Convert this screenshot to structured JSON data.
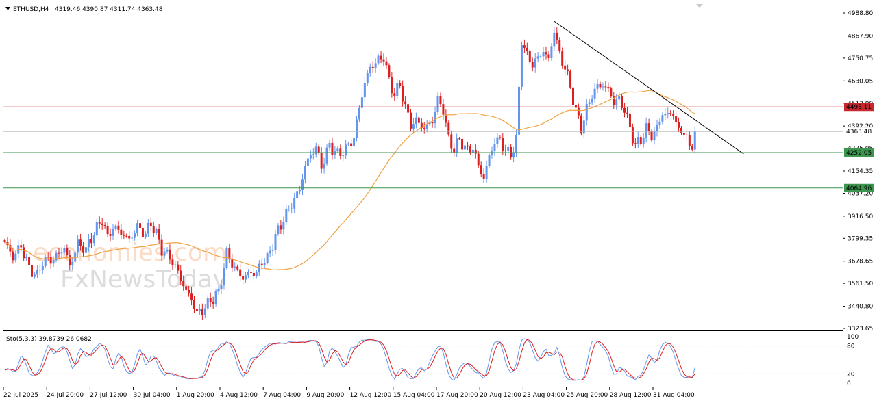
{
  "header": {
    "symbol": "ETHUSD,H4",
    "ohlc": "4319.46 4390.87 4311.74 4363.48"
  },
  "indicator": {
    "label": "Sto(5,3,3) 39.8739 26.0682",
    "levels": [
      "100",
      "80",
      "20",
      "0"
    ]
  },
  "watermark": {
    "line1": "economies.com",
    "line2": "FxNewsToday"
  },
  "colors": {
    "bull": "#6495ed",
    "bear": "#dc1e1e",
    "ma": "#f0a040",
    "resistance": "#c8282d",
    "support": "#3c9650",
    "current": "#b4b4b4",
    "trendline": "#000000",
    "stoch_main": "#6495ed",
    "stoch_signal": "#dc1e1e"
  },
  "chart_data": {
    "type": "candlestick",
    "symbol": "ETHUSD",
    "timeframe": "H4",
    "ylim": [
      3323.65,
      4988.8
    ],
    "price_ticks": [
      "4988.80",
      "4867.90",
      "4750.75",
      "4630.05",
      "4512.90",
      "4392.20",
      "4275.05",
      "4154.35",
      "4037.20",
      "3916.50",
      "3799.35",
      "3678.65",
      "3561.50",
      "3440.80",
      "3323.65"
    ],
    "x_tick_labels": [
      "22 Jul 2025",
      "24 Jul 20:00",
      "27 Jul 12:00",
      "30 Jul 04:00",
      "1 Aug 20:00",
      "4 Aug 12:00",
      "7 Aug 04:00",
      "9 Aug 20:00",
      "12 Aug 12:00",
      "15 Aug 04:00",
      "17 Aug 20:00",
      "20 Aug 12:00",
      "23 Aug 04:00",
      "25 Aug 20:00",
      "28 Aug 12:00",
      "31 Aug 04:00"
    ],
    "price_labels": [
      {
        "text": "4493.11",
        "value": 4493.11,
        "kind": "resistance"
      },
      {
        "text": "4363.48",
        "value": 4363.48,
        "kind": "current"
      },
      {
        "text": "4252.05",
        "value": 4252.05,
        "kind": "support"
      },
      {
        "text": "4064.96",
        "value": 4064.96,
        "kind": "support"
      }
    ],
    "trendline": {
      "start": {
        "x_index": 203,
        "price": 4945
      },
      "end": {
        "x_index": 273,
        "price": 4245
      }
    },
    "anchors": [
      [
        0,
        3780
      ],
      [
        3,
        3700
      ],
      [
        6,
        3760
      ],
      [
        9,
        3640
      ],
      [
        12,
        3600
      ],
      [
        14,
        3680
      ],
      [
        18,
        3690
      ],
      [
        22,
        3750
      ],
      [
        24,
        3650
      ],
      [
        27,
        3770
      ],
      [
        30,
        3740
      ],
      [
        33,
        3830
      ],
      [
        36,
        3900
      ],
      [
        38,
        3800
      ],
      [
        40,
        3860
      ],
      [
        43,
        3830
      ],
      [
        46,
        3790
      ],
      [
        49,
        3860
      ],
      [
        52,
        3820
      ],
      [
        54,
        3880
      ],
      [
        56,
        3820
      ],
      [
        58,
        3740
      ],
      [
        61,
        3700
      ],
      [
        64,
        3620
      ],
      [
        67,
        3520
      ],
      [
        69,
        3480
      ],
      [
        71,
        3400
      ],
      [
        73,
        3420
      ],
      [
        76,
        3470
      ],
      [
        79,
        3510
      ],
      [
        82,
        3720
      ],
      [
        85,
        3640
      ],
      [
        88,
        3590
      ],
      [
        91,
        3620
      ],
      [
        93,
        3610
      ],
      [
        95,
        3680
      ],
      [
        97,
        3690
      ],
      [
        100,
        3810
      ],
      [
        103,
        3900
      ],
      [
        106,
        3980
      ],
      [
        109,
        4060
      ],
      [
        111,
        4180
      ],
      [
        113,
        4240
      ],
      [
        115,
        4280
      ],
      [
        117,
        4180
      ],
      [
        120,
        4290
      ],
      [
        123,
        4240
      ],
      [
        126,
        4270
      ],
      [
        129,
        4330
      ],
      [
        131,
        4490
      ],
      [
        133,
        4620
      ],
      [
        135,
        4700
      ],
      [
        138,
        4740
      ],
      [
        140,
        4760
      ],
      [
        142,
        4630
      ],
      [
        144,
        4560
      ],
      [
        146,
        4610
      ],
      [
        148,
        4490
      ],
      [
        150,
        4400
      ],
      [
        152,
        4420
      ],
      [
        155,
        4380
      ],
      [
        158,
        4420
      ],
      [
        160,
        4530
      ],
      [
        162,
        4480
      ],
      [
        164,
        4320
      ],
      [
        166,
        4270
      ],
      [
        168,
        4320
      ],
      [
        171,
        4260
      ],
      [
        173,
        4280
      ],
      [
        175,
        4180
      ],
      [
        177,
        4120
      ],
      [
        179,
        4230
      ],
      [
        181,
        4310
      ],
      [
        183,
        4320
      ],
      [
        185,
        4260
      ],
      [
        187,
        4240
      ],
      [
        189,
        4320
      ],
      [
        191,
        4850
      ],
      [
        193,
        4760
      ],
      [
        195,
        4720
      ],
      [
        197,
        4750
      ],
      [
        199,
        4790
      ],
      [
        201,
        4740
      ],
      [
        203,
        4900
      ],
      [
        205,
        4770
      ],
      [
        207,
        4700
      ],
      [
        209,
        4600
      ],
      [
        211,
        4470
      ],
      [
        213,
        4380
      ],
      [
        215,
        4480
      ],
      [
        217,
        4560
      ],
      [
        219,
        4600
      ],
      [
        221,
        4610
      ],
      [
        223,
        4580
      ],
      [
        225,
        4520
      ],
      [
        227,
        4530
      ],
      [
        229,
        4480
      ],
      [
        231,
        4380
      ],
      [
        233,
        4290
      ],
      [
        235,
        4320
      ],
      [
        237,
        4380
      ],
      [
        239,
        4340
      ],
      [
        241,
        4380
      ],
      [
        243,
        4460
      ],
      [
        245,
        4450
      ],
      [
        247,
        4460
      ],
      [
        249,
        4360
      ],
      [
        251,
        4370
      ],
      [
        253,
        4270
      ],
      [
        255,
        4330
      ]
    ],
    "series": [
      {
        "name": "ETHUSD,H4",
        "type": "candles"
      }
    ]
  }
}
